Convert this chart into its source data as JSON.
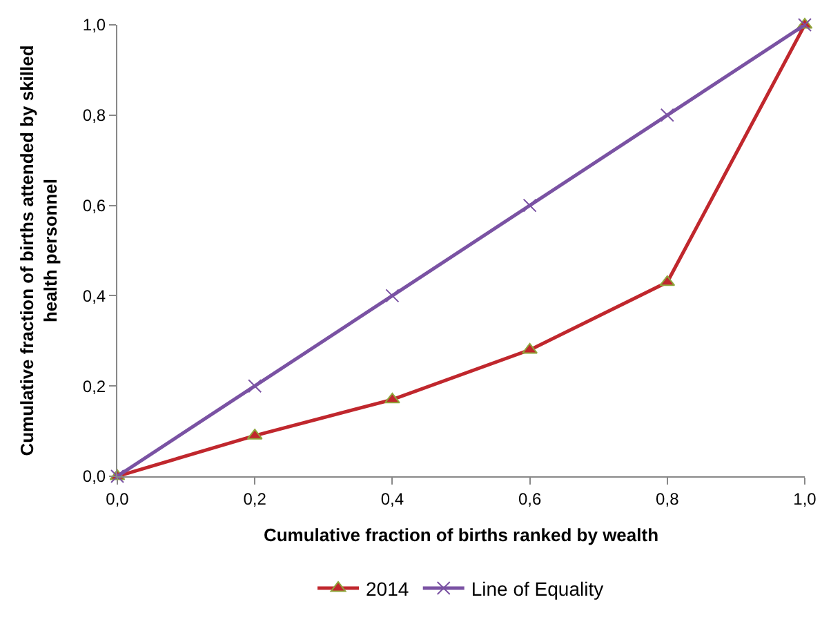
{
  "chart_data": {
    "type": "line",
    "xlabel": "Cumulative fraction of births ranked by wealth",
    "ylabel": "Cumulative fraction of births attended by skilled health personnel",
    "x": [
      0,
      0.2,
      0.4,
      0.6,
      0.8,
      1.0
    ],
    "series": [
      {
        "name": "2014",
        "color": "#c0272d",
        "marker": "triangle",
        "values": [
          0,
          0.09,
          0.17,
          0.28,
          0.43,
          1.0
        ]
      },
      {
        "name": "Line of Equality",
        "color": "#7a52a3",
        "marker": "cross",
        "values": [
          0,
          0.2,
          0.4,
          0.6,
          0.8,
          1.0
        ]
      }
    ],
    "xlim": [
      0,
      1.0
    ],
    "ylim": [
      0,
      1.0
    ],
    "xticks": [
      {
        "value": 0,
        "label": "0,0"
      },
      {
        "value": 0.2,
        "label": "0,2"
      },
      {
        "value": 0.4,
        "label": "0,4"
      },
      {
        "value": 0.6,
        "label": "0,6"
      },
      {
        "value": 0.8,
        "label": "0,8"
      },
      {
        "value": 1.0,
        "label": "1,0"
      }
    ],
    "yticks": [
      {
        "value": 0,
        "label": "0,0"
      },
      {
        "value": 0.2,
        "label": "0,2"
      },
      {
        "value": 0.4,
        "label": "0,4"
      },
      {
        "value": 0.6,
        "label": "0,6"
      },
      {
        "value": 0.8,
        "label": "0,8"
      },
      {
        "value": 1.0,
        "label": "1,0"
      }
    ],
    "legend": "bottom"
  }
}
